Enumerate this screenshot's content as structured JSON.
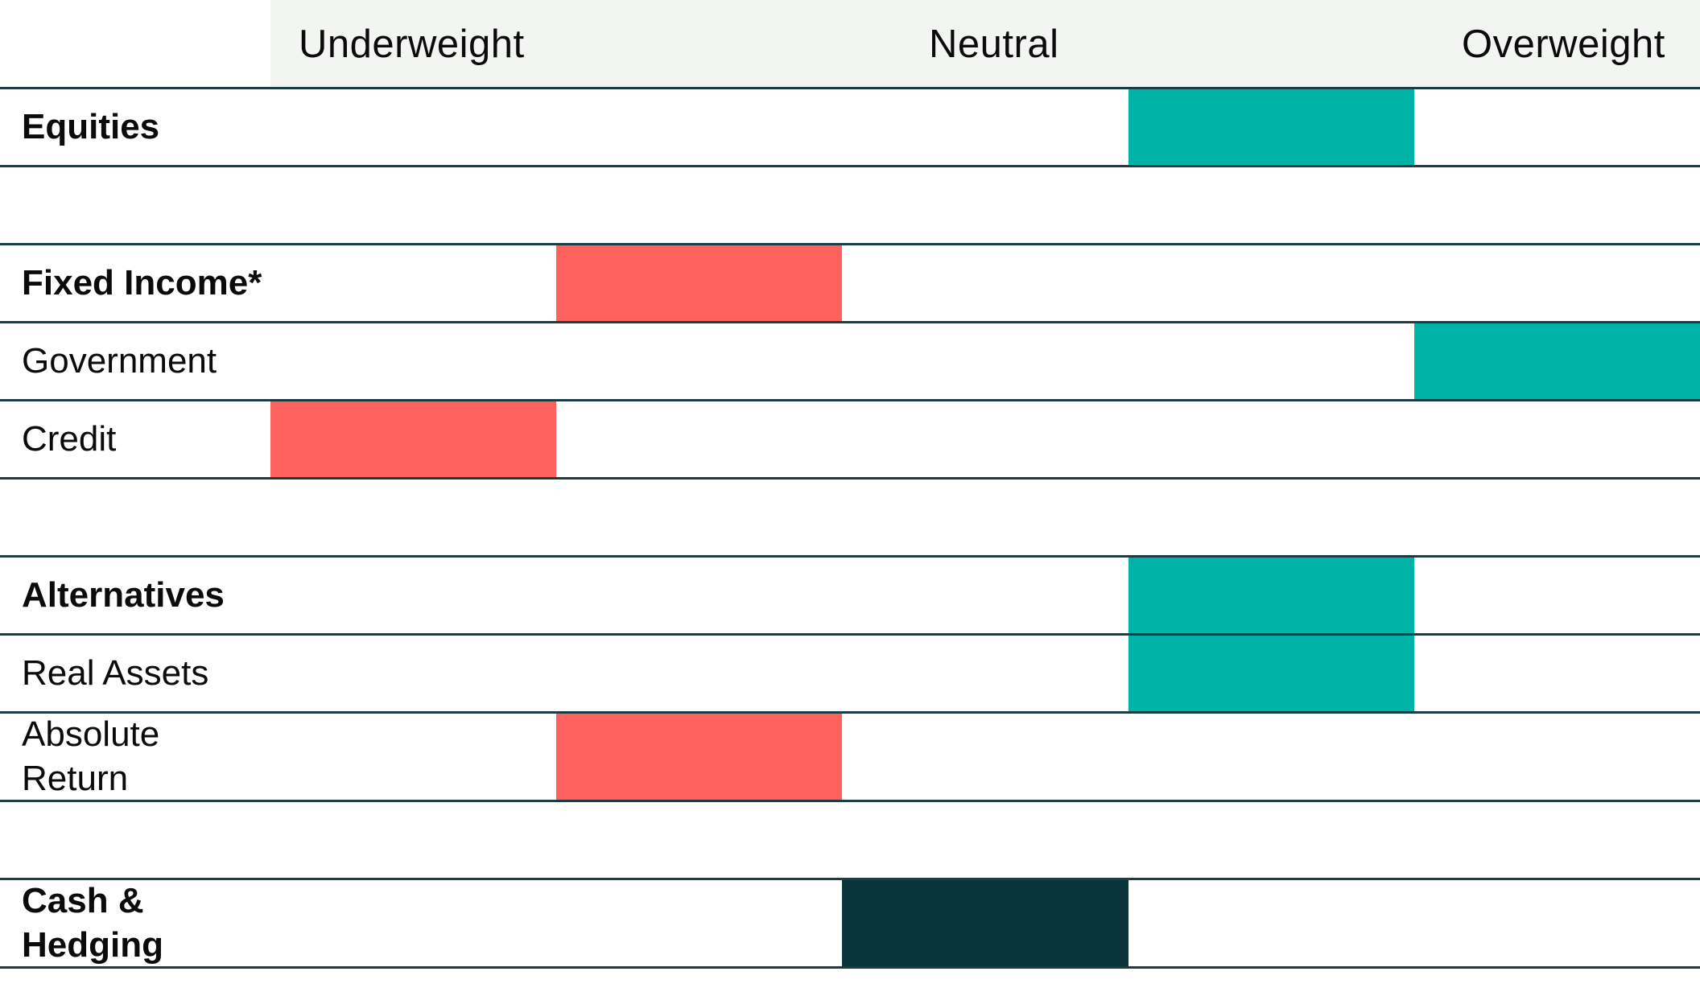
{
  "colors": {
    "underweight": "#ff625c",
    "overweight": "#00b3a7",
    "neutral": "#0a343b",
    "header_bg": "#f3f5f2",
    "rule": "#1d3b42"
  },
  "chart_data": {
    "type": "table",
    "scale": {
      "columns": 5,
      "labels": [
        "Underweight",
        "Neutral",
        "Overweight"
      ],
      "meaning": "position 1 = most underweight, 3 = neutral, 5 = most overweight"
    },
    "rows": [
      {
        "label": "Equities",
        "bold": true,
        "position": 4,
        "sentiment": "overweight"
      },
      {
        "label": "",
        "bold": false,
        "position": null,
        "sentiment": null
      },
      {
        "label": "Fixed Income*",
        "bold": true,
        "position": 2,
        "sentiment": "underweight"
      },
      {
        "label": "Government",
        "bold": false,
        "position": 5,
        "sentiment": "overweight"
      },
      {
        "label": "Credit",
        "bold": false,
        "position": 1,
        "sentiment": "underweight"
      },
      {
        "label": "",
        "bold": false,
        "position": null,
        "sentiment": null
      },
      {
        "label": "Alternatives",
        "bold": true,
        "position": 4,
        "sentiment": "overweight"
      },
      {
        "label": "Real Assets",
        "bold": false,
        "position": 4,
        "sentiment": "overweight"
      },
      {
        "label": "Absolute\nReturn",
        "bold": false,
        "position": 2,
        "sentiment": "underweight"
      },
      {
        "label": "",
        "bold": false,
        "position": null,
        "sentiment": null
      },
      {
        "label": "Cash &\nHedging",
        "bold": true,
        "position": 3,
        "sentiment": "neutral"
      }
    ]
  }
}
